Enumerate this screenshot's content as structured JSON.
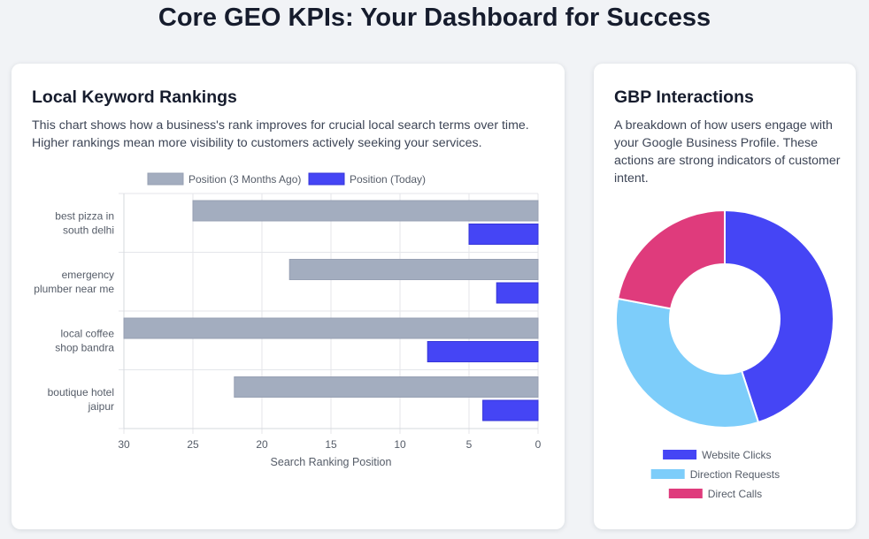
{
  "page": {
    "title": "Core GEO KPIs: Your Dashboard for Success"
  },
  "rankings_card": {
    "title": "Local Keyword Rankings",
    "description": "This chart shows how a business's rank improves for crucial local search terms over time. Higher rankings mean more visibility to customers actively seeking your services."
  },
  "gbp_card": {
    "title": "GBP Interactions",
    "description": "A breakdown of how users engage with your Google Business Profile. These actions are strong indicators of customer intent."
  },
  "chart_data": [
    {
      "type": "bar",
      "orientation": "horizontal",
      "categories": [
        [
          "best pizza in",
          "south delhi"
        ],
        [
          "emergency",
          "plumber near me"
        ],
        [
          "local coffee",
          "shop bandra"
        ],
        [
          "boutique hotel",
          "jaipur"
        ]
      ],
      "series": [
        {
          "name": "Position (3 Months Ago)",
          "values": [
            25,
            18,
            30,
            22
          ],
          "color": "#a3adbf"
        },
        {
          "name": "Position (Today)",
          "values": [
            5,
            3,
            8,
            4
          ],
          "color": "#4545f5"
        }
      ],
      "xlabel": "Search Ranking Position",
      "xlim": [
        30,
        0
      ],
      "x_reversed": true,
      "xticks": [
        30,
        25,
        20,
        15,
        10,
        5,
        0
      ],
      "grid": true,
      "legend": "top"
    },
    {
      "type": "pie",
      "donut": true,
      "labels": [
        "Website Clicks",
        "Direction Requests",
        "Direct Calls"
      ],
      "values": [
        45,
        33,
        22
      ],
      "colors": [
        "#4545f5",
        "#7dcdfa",
        "#df3b7c"
      ],
      "legend": "bottom"
    }
  ]
}
